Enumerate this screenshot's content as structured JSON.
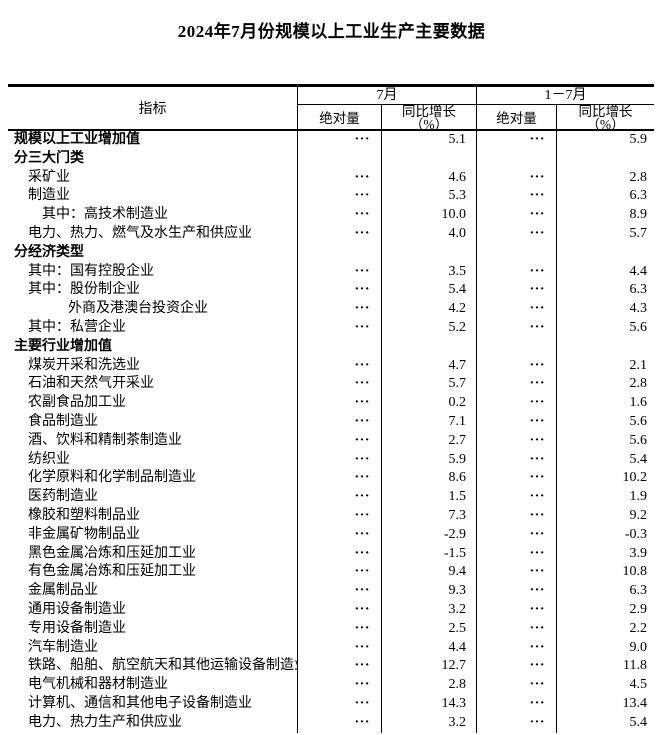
{
  "page": {
    "title": "2024年7月份规模以上工业生产主要数据"
  },
  "colors": {
    "text": "#000000",
    "background": "#ffffff",
    "border": "#000000"
  },
  "table": {
    "missing_marker": "···",
    "header": {
      "indicator": "指标",
      "period_july": "7月",
      "period_jan_jul": "1－7月",
      "col_absolute_july": "绝对量",
      "col_yoy_line1_july": "同比增长",
      "col_yoy_line2_july": "（%）",
      "col_absolute_cum": "绝对量",
      "col_yoy_line1_cum": "同比增长",
      "col_yoy_line2_cum": "（%）"
    },
    "rows": [
      {
        "label": "规模以上工业增加值",
        "indent": 0,
        "bold": true,
        "jul_abs": "···",
        "jul_yoy": "5.1",
        "cum_abs": "···",
        "cum_yoy": "5.9"
      },
      {
        "label": "分三大门类",
        "indent": 0,
        "bold": true,
        "jul_abs": "",
        "jul_yoy": "",
        "cum_abs": "",
        "cum_yoy": ""
      },
      {
        "label": "采矿业",
        "indent": 1,
        "bold": false,
        "jul_abs": "···",
        "jul_yoy": "4.6",
        "cum_abs": "···",
        "cum_yoy": "2.8"
      },
      {
        "label": "制造业",
        "indent": 1,
        "bold": false,
        "jul_abs": "···",
        "jul_yoy": "5.3",
        "cum_abs": "···",
        "cum_yoy": "6.3"
      },
      {
        "label": "其中：高技术制造业",
        "indent": 2,
        "bold": false,
        "jul_abs": "···",
        "jul_yoy": "10.0",
        "cum_abs": "···",
        "cum_yoy": "8.9"
      },
      {
        "label": "电力、热力、燃气及水生产和供应业",
        "indent": 1,
        "bold": false,
        "jul_abs": "···",
        "jul_yoy": "4.0",
        "cum_abs": "···",
        "cum_yoy": "5.7"
      },
      {
        "label": "分经济类型",
        "indent": 0,
        "bold": true,
        "jul_abs": "",
        "jul_yoy": "",
        "cum_abs": "",
        "cum_yoy": ""
      },
      {
        "label": "其中：国有控股企业",
        "indent": 1,
        "bold": false,
        "jul_abs": "···",
        "jul_yoy": "3.5",
        "cum_abs": "···",
        "cum_yoy": "4.4"
      },
      {
        "label": "其中：股份制企业",
        "indent": 1,
        "bold": false,
        "jul_abs": "···",
        "jul_yoy": "5.4",
        "cum_abs": "···",
        "cum_yoy": "6.3"
      },
      {
        "label": "外商及港澳台投资企业",
        "indent": 3,
        "bold": false,
        "jul_abs": "···",
        "jul_yoy": "4.2",
        "cum_abs": "···",
        "cum_yoy": "4.3"
      },
      {
        "label": "其中：私营企业",
        "indent": 1,
        "bold": false,
        "jul_abs": "···",
        "jul_yoy": "5.2",
        "cum_abs": "···",
        "cum_yoy": "5.6"
      },
      {
        "label": "主要行业增加值",
        "indent": 0,
        "bold": true,
        "jul_abs": "",
        "jul_yoy": "",
        "cum_abs": "",
        "cum_yoy": ""
      },
      {
        "label": "煤炭开采和洗选业",
        "indent": 1,
        "bold": false,
        "jul_abs": "···",
        "jul_yoy": "4.7",
        "cum_abs": "···",
        "cum_yoy": "2.1"
      },
      {
        "label": "石油和天然气开采业",
        "indent": 1,
        "bold": false,
        "jul_abs": "···",
        "jul_yoy": "5.7",
        "cum_abs": "···",
        "cum_yoy": "2.8"
      },
      {
        "label": "农副食品加工业",
        "indent": 1,
        "bold": false,
        "jul_abs": "···",
        "jul_yoy": "0.2",
        "cum_abs": "···",
        "cum_yoy": "1.6"
      },
      {
        "label": "食品制造业",
        "indent": 1,
        "bold": false,
        "jul_abs": "···",
        "jul_yoy": "7.1",
        "cum_abs": "···",
        "cum_yoy": "5.6"
      },
      {
        "label": "酒、饮料和精制茶制造业",
        "indent": 1,
        "bold": false,
        "jul_abs": "···",
        "jul_yoy": "2.7",
        "cum_abs": "···",
        "cum_yoy": "5.6"
      },
      {
        "label": "纺织业",
        "indent": 1,
        "bold": false,
        "jul_abs": "···",
        "jul_yoy": "5.9",
        "cum_abs": "···",
        "cum_yoy": "5.4"
      },
      {
        "label": "化学原料和化学制品制造业",
        "indent": 1,
        "bold": false,
        "jul_abs": "···",
        "jul_yoy": "8.6",
        "cum_abs": "···",
        "cum_yoy": "10.2"
      },
      {
        "label": "医药制造业",
        "indent": 1,
        "bold": false,
        "jul_abs": "···",
        "jul_yoy": "1.5",
        "cum_abs": "···",
        "cum_yoy": "1.9"
      },
      {
        "label": "橡胶和塑料制品业",
        "indent": 1,
        "bold": false,
        "jul_abs": "···",
        "jul_yoy": "7.3",
        "cum_abs": "···",
        "cum_yoy": "9.2"
      },
      {
        "label": "非金属矿物制品业",
        "indent": 1,
        "bold": false,
        "jul_abs": "···",
        "jul_yoy": "-2.9",
        "cum_abs": "···",
        "cum_yoy": "-0.3"
      },
      {
        "label": "黑色金属冶炼和压延加工业",
        "indent": 1,
        "bold": false,
        "jul_abs": "···",
        "jul_yoy": "-1.5",
        "cum_abs": "···",
        "cum_yoy": "3.9"
      },
      {
        "label": "有色金属冶炼和压延加工业",
        "indent": 1,
        "bold": false,
        "jul_abs": "···",
        "jul_yoy": "9.4",
        "cum_abs": "···",
        "cum_yoy": "10.8"
      },
      {
        "label": "金属制品业",
        "indent": 1,
        "bold": false,
        "jul_abs": "···",
        "jul_yoy": "9.3",
        "cum_abs": "···",
        "cum_yoy": "6.3"
      },
      {
        "label": "通用设备制造业",
        "indent": 1,
        "bold": false,
        "jul_abs": "···",
        "jul_yoy": "3.2",
        "cum_abs": "···",
        "cum_yoy": "2.9"
      },
      {
        "label": "专用设备制造业",
        "indent": 1,
        "bold": false,
        "jul_abs": "···",
        "jul_yoy": "2.5",
        "cum_abs": "···",
        "cum_yoy": "2.2"
      },
      {
        "label": "汽车制造业",
        "indent": 1,
        "bold": false,
        "jul_abs": "···",
        "jul_yoy": "4.4",
        "cum_abs": "···",
        "cum_yoy": "9.0"
      },
      {
        "label": "铁路、船舶、航空航天和其他运输设备制造业",
        "indent": 1,
        "bold": false,
        "jul_abs": "···",
        "jul_yoy": "12.7",
        "cum_abs": "···",
        "cum_yoy": "11.8"
      },
      {
        "label": "电气机械和器材制造业",
        "indent": 1,
        "bold": false,
        "jul_abs": "···",
        "jul_yoy": "2.8",
        "cum_abs": "···",
        "cum_yoy": "4.5"
      },
      {
        "label": "计算机、通信和其他电子设备制造业",
        "indent": 1,
        "bold": false,
        "jul_abs": "···",
        "jul_yoy": "14.3",
        "cum_abs": "···",
        "cum_yoy": "13.4"
      },
      {
        "label": "电力、热力生产和供应业",
        "indent": 1,
        "bold": false,
        "jul_abs": "···",
        "jul_yoy": "3.2",
        "cum_abs": "···",
        "cum_yoy": "5.4"
      }
    ]
  }
}
